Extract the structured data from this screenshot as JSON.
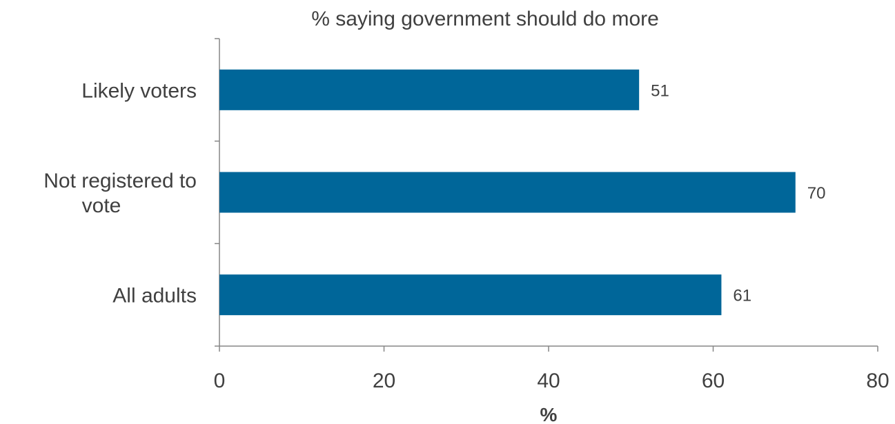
{
  "chart_data": {
    "type": "bar",
    "orientation": "horizontal",
    "title": "% saying government should do more",
    "categories": [
      [
        "Likely voters"
      ],
      [
        "Not registered to",
        "vote"
      ],
      [
        "All adults"
      ]
    ],
    "values": [
      51,
      70,
      61
    ],
    "data_labels": [
      "51",
      "70",
      "61"
    ],
    "xlabel": "%",
    "ylabel": "",
    "xlim": [
      0,
      80
    ],
    "xticks": [
      0,
      20,
      40,
      60,
      80
    ],
    "grid": false,
    "bar_color": "#006699",
    "axis_color": "#868686"
  }
}
